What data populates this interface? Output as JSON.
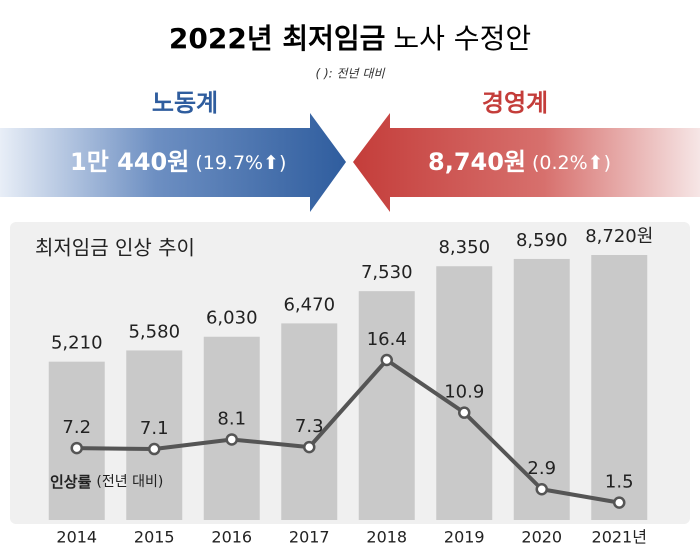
{
  "header": {
    "title_bold": "2022년 최저임금",
    "title_light": "노사 수정안",
    "note": "( ): 전년 대비"
  },
  "proposals": {
    "labor": {
      "label": "노동계",
      "amount": "1만 440원",
      "rate": "(19.7%⬆)",
      "color": "#2f5d9e"
    },
    "management": {
      "label": "경영계",
      "amount": "8,740원",
      "rate": "(0.2%⬆)",
      "color": "#c43d3a"
    }
  },
  "chart_data": {
    "type": "combo",
    "title": "최저임금 인상 추이",
    "categories": [
      "2014",
      "2015",
      "2016",
      "2017",
      "2018",
      "2019",
      "2020",
      "2021년"
    ],
    "series": [
      {
        "type": "bar",
        "color": "#c9c9c9",
        "values": [
          5210,
          5580,
          6030,
          6470,
          7530,
          8350,
          8590,
          8720
        ],
        "value_labels": [
          "5,210",
          "5,580",
          "6,030",
          "6,470",
          "7,530",
          "8,350",
          "8,590",
          "8,720원"
        ]
      },
      {
        "type": "line",
        "color": "#555555",
        "values": [
          7.2,
          7.1,
          8.1,
          7.3,
          16.4,
          10.9,
          2.9,
          1.5
        ]
      }
    ],
    "line_label": "인상률",
    "line_label_note": "(전년 대비)"
  }
}
